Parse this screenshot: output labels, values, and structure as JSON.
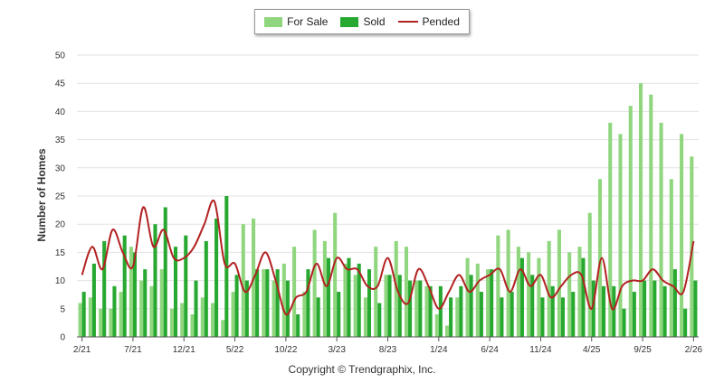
{
  "chart_data": {
    "type": "bar",
    "ylabel": "Number of Homes",
    "ylim": [
      0,
      50
    ],
    "yticks": [
      0,
      5,
      10,
      15,
      20,
      25,
      30,
      35,
      40,
      45,
      50
    ],
    "x_tick_labels": [
      "2/21",
      "7/21",
      "12/21",
      "5/22",
      "10/22",
      "3/23",
      "8/23",
      "1/24",
      "6/24",
      "11/24",
      "4/25",
      "9/25",
      "2/26"
    ],
    "months": [
      "2/21",
      "3/21",
      "4/21",
      "5/21",
      "6/21",
      "7/21",
      "8/21",
      "9/21",
      "10/21",
      "11/21",
      "12/21",
      "1/22",
      "2/22",
      "3/22",
      "4/22",
      "5/22",
      "6/22",
      "7/22",
      "8/22",
      "9/22",
      "10/22",
      "11/22",
      "12/22",
      "1/23",
      "2/23",
      "3/23",
      "4/23",
      "5/23",
      "6/23",
      "7/23",
      "8/23",
      "9/23",
      "10/23",
      "11/23",
      "12/23",
      "1/24",
      "2/24",
      "3/24",
      "4/24",
      "5/24",
      "6/24",
      "7/24",
      "8/24",
      "9/24",
      "10/24",
      "11/24",
      "12/24",
      "1/25",
      "2/25",
      "3/25",
      "4/25",
      "5/25",
      "6/25",
      "7/25",
      "8/25",
      "9/25",
      "10/25",
      "11/25",
      "12/25",
      "1/26",
      "2/26"
    ],
    "series": [
      {
        "name": "For Sale",
        "color": "#8fd67e",
        "values": [
          6,
          7,
          5,
          5,
          8,
          16,
          10,
          9,
          12,
          5,
          6,
          4,
          7,
          6,
          3,
          8,
          20,
          21,
          12,
          10,
          13,
          16,
          8,
          19,
          17,
          22,
          13,
          11,
          7,
          16,
          11,
          17,
          16,
          10,
          9,
          4,
          2,
          7,
          14,
          13,
          12,
          18,
          19,
          16,
          15,
          14,
          17,
          19,
          15,
          16,
          22,
          28,
          38,
          36,
          41,
          45,
          43,
          38,
          28,
          36,
          32
        ]
      },
      {
        "name": "Sold",
        "color": "#27a830",
        "values": [
          8,
          13,
          17,
          9,
          18,
          15,
          12,
          20,
          23,
          16,
          18,
          10,
          17,
          21,
          25,
          11,
          10,
          12,
          12,
          12,
          10,
          4,
          12,
          7,
          14,
          8,
          14,
          13,
          12,
          6,
          11,
          11,
          10,
          10,
          9,
          9,
          7,
          9,
          11,
          8,
          12,
          7,
          8,
          14,
          11,
          7,
          9,
          7,
          8,
          14,
          10,
          9,
          9,
          5,
          8,
          10,
          10,
          9,
          12,
          5,
          10
        ]
      },
      {
        "name": "Pended",
        "color": "#b22222",
        "type": "line",
        "values": [
          11,
          16,
          12,
          19,
          15,
          12.5,
          23,
          16,
          19,
          14,
          14,
          16,
          20,
          24,
          13,
          13,
          8,
          11,
          15,
          10,
          4,
          7,
          8,
          13,
          9,
          14,
          12,
          12,
          9,
          9,
          14,
          8,
          6,
          12,
          9,
          5,
          8,
          11,
          8,
          10,
          11,
          12,
          8,
          12,
          9,
          11,
          7,
          9,
          11,
          11,
          5,
          14,
          5,
          9,
          10,
          10,
          12,
          10,
          9,
          8,
          17
        ]
      }
    ],
    "legend": "top-center",
    "grid": "horizontal"
  },
  "copyright": "Copyright © Trendgraphix, Inc."
}
